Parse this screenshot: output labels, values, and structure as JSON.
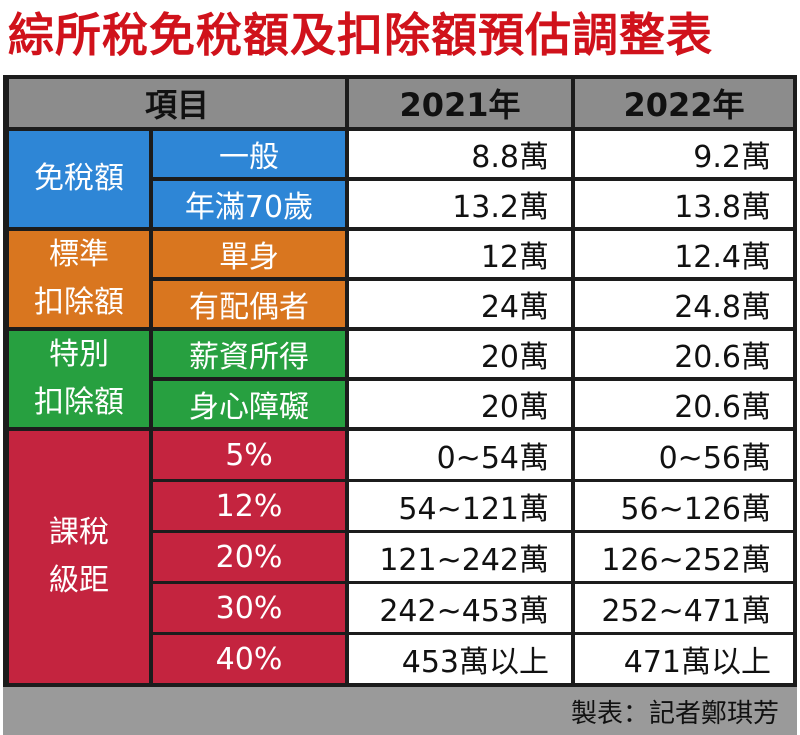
{
  "title": "綜所稅免稅額及扣除額預估調整表",
  "header": {
    "item": "項目",
    "year1": "2021年",
    "year2": "2022年"
  },
  "groups": [
    {
      "label_lines": [
        "免稅額"
      ],
      "color": "#2e86d6"
    },
    {
      "label_lines": [
        "標準",
        "扣除額"
      ],
      "color": "#d9761f"
    },
    {
      "label_lines": [
        "特別",
        "扣除額"
      ],
      "color": "#27a040"
    },
    {
      "label_lines": [
        "課稅",
        "級距"
      ],
      "color": "#c4243f"
    }
  ],
  "rows": [
    {
      "item": "一般",
      "y2021": "8.8萬",
      "y2022": "9.2萬"
    },
    {
      "item": "年滿70歲",
      "y2021": "13.2萬",
      "y2022": "13.8萬"
    },
    {
      "item": "單身",
      "y2021": "12萬",
      "y2022": "12.4萬"
    },
    {
      "item": "有配偶者",
      "y2021": "24萬",
      "y2022": "24.8萬"
    },
    {
      "item": "薪資所得",
      "y2021": "20萬",
      "y2022": "20.6萬"
    },
    {
      "item": "身心障礙",
      "y2021": "20萬",
      "y2022": "20.6萬"
    },
    {
      "item": "5%",
      "y2021": "0~54萬",
      "y2022": "0~56萬"
    },
    {
      "item": "12%",
      "y2021": "54~121萬",
      "y2022": "56~126萬"
    },
    {
      "item": "20%",
      "y2021": "121~242萬",
      "y2022": "126~252萬"
    },
    {
      "item": "30%",
      "y2021": "242~453萬",
      "y2022": "252~471萬"
    },
    {
      "item": "40%",
      "y2021": "453萬以上",
      "y2022": "471萬以上"
    }
  ],
  "footer": "製表：記者鄭琪芳"
}
